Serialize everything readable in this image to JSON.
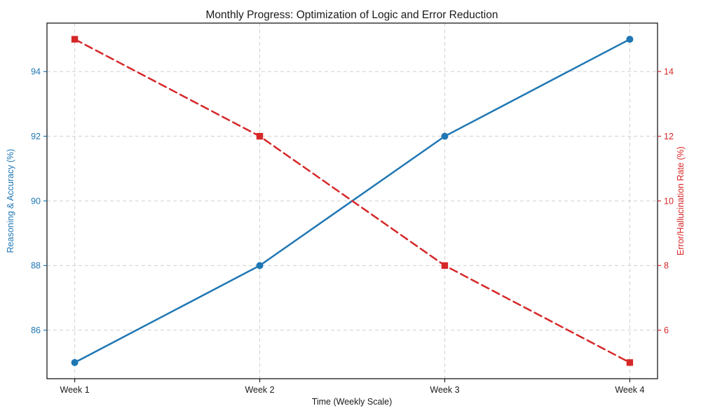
{
  "chart_data": {
    "type": "line",
    "title": "Monthly Progress: Optimization of Logic and Error Reduction",
    "xlabel": "Time (Weekly Scale)",
    "categories": [
      "Week 1",
      "Week 2",
      "Week 3",
      "Week 4"
    ],
    "series": [
      {
        "name": "Reasoning & Accuracy (%)",
        "axis": "left",
        "values": [
          85,
          88,
          92,
          95
        ],
        "color": "#1f77b4",
        "line_style": "solid",
        "marker": "circle"
      },
      {
        "name": "Error/Hallucination Rate (%)",
        "axis": "right",
        "values": [
          15,
          12,
          8,
          5
        ],
        "color": "#d62728",
        "line_style": "dashed",
        "marker": "square"
      }
    ],
    "left_axis": {
      "label": "Reasoning & Accuracy (%)",
      "ticks": [
        86,
        88,
        90,
        92,
        94
      ],
      "range": [
        84.5,
        95.5
      ],
      "color": "#1f77b4"
    },
    "right_axis": {
      "label": "Error/Hallucination Rate (%)",
      "ticks": [
        6,
        8,
        10,
        12,
        14
      ],
      "range": [
        4.5,
        15.5
      ],
      "color": "#d62728"
    },
    "grid": {
      "visible": true,
      "style": "dashed",
      "color": "#cfcfcf"
    },
    "legend": "none",
    "spine_color": "#1a1a1a"
  }
}
